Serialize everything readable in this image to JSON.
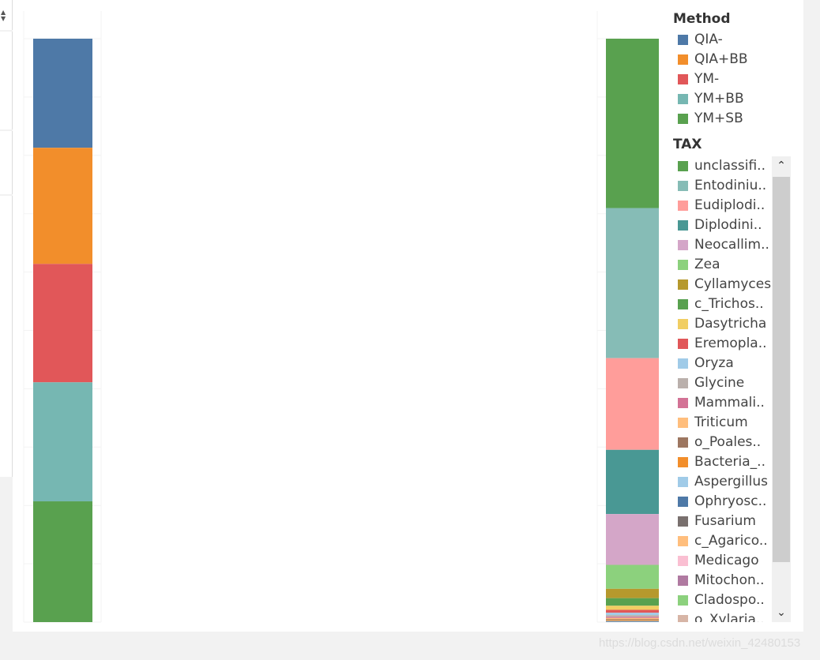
{
  "watermark": "https://blog.csdn.net/weixin_42480153",
  "left_panel": {
    "sort_icon": "sort-icon"
  },
  "legend": {
    "method_title": "Method",
    "tax_title": "TAX",
    "method_items": [
      {
        "label": "QIA-",
        "color": "#4e79a7"
      },
      {
        "label": "QIA+BB",
        "color": "#f28e2b"
      },
      {
        "label": "YM-",
        "color": "#e15759"
      },
      {
        "label": "YM+BB",
        "color": "#76b7b2"
      },
      {
        "label": "YM+SB",
        "color": "#59a14f"
      }
    ],
    "tax_items": [
      {
        "label": "unclassifi..",
        "color": "#59a14f"
      },
      {
        "label": "Entodiniu..",
        "color": "#86bcb6"
      },
      {
        "label": "Eudiplodi..",
        "color": "#ff9d9a"
      },
      {
        "label": "Diplodini..",
        "color": "#499894"
      },
      {
        "label": "Neocallim..",
        "color": "#d4a6c8"
      },
      {
        "label": "Zea",
        "color": "#8cd17d"
      },
      {
        "label": "Cyllamyces",
        "color": "#b6992d"
      },
      {
        "label": "c_Trichos..",
        "color": "#59a14f"
      },
      {
        "label": "Dasytricha",
        "color": "#f1ce63"
      },
      {
        "label": "Eremopla..",
        "color": "#e15759"
      },
      {
        "label": "Oryza",
        "color": "#a0cbe8"
      },
      {
        "label": "Glycine",
        "color": "#bab0ac"
      },
      {
        "label": "Mammali..",
        "color": "#d37295"
      },
      {
        "label": "Triticum",
        "color": "#ffbe7d"
      },
      {
        "label": "o_Poales..",
        "color": "#9d7660"
      },
      {
        "label": "Bacteria_..",
        "color": "#f28e2b"
      },
      {
        "label": "Aspergillus",
        "color": "#a0cbe8"
      },
      {
        "label": "Ophryosc..",
        "color": "#4e79a7"
      },
      {
        "label": "Fusarium",
        "color": "#79706e"
      },
      {
        "label": "c_Agarico..",
        "color": "#ffbe7d"
      },
      {
        "label": "Medicago",
        "color": "#fabfd2"
      },
      {
        "label": "Mitochon..",
        "color": "#b07aa1"
      },
      {
        "label": "Cladospo..",
        "color": "#8cd17d"
      },
      {
        "label": "o_Xylaria..",
        "color": "#d7b5a6"
      }
    ],
    "scroll_up_icon": "chevron-up-icon",
    "scroll_down_icon": "chevron-down-icon"
  },
  "chart_data": [
    {
      "type": "bar",
      "stacked": true,
      "normalized": true,
      "categories": [
        ""
      ],
      "series": [
        {
          "name": "QIA-",
          "values": [
            18.7
          ],
          "color": "#4e79a7"
        },
        {
          "name": "QIA+BB",
          "values": [
            19.9
          ],
          "color": "#f28e2b"
        },
        {
          "name": "YM-",
          "values": [
            20.3
          ],
          "color": "#e15759"
        },
        {
          "name": "YM+BB",
          "values": [
            20.4
          ],
          "color": "#76b7b2"
        },
        {
          "name": "YM+SB",
          "values": [
            20.7
          ],
          "color": "#59a14f"
        }
      ]
    },
    {
      "type": "bar",
      "stacked": true,
      "normalized": true,
      "categories": [
        ""
      ],
      "series": [
        {
          "name": "unclassifi..",
          "values": [
            29.0
          ],
          "color": "#59a14f"
        },
        {
          "name": "Entodiniu..",
          "values": [
            25.7
          ],
          "color": "#86bcb6"
        },
        {
          "name": "Eudiplodi..",
          "values": [
            15.7
          ],
          "color": "#ff9d9a"
        },
        {
          "name": "Diplodini..",
          "values": [
            11.0
          ],
          "color": "#499894"
        },
        {
          "name": "Neocallim..",
          "values": [
            8.7
          ],
          "color": "#d4a6c8"
        },
        {
          "name": "Zea",
          "values": [
            4.1
          ],
          "color": "#8cd17d"
        },
        {
          "name": "Cyllamyces",
          "values": [
            1.6
          ],
          "color": "#b6992d"
        },
        {
          "name": "c_Trichos..",
          "values": [
            1.3
          ],
          "color": "#59a14f"
        },
        {
          "name": "Dasytricha",
          "values": [
            0.7
          ],
          "color": "#f1ce63"
        },
        {
          "name": "Eremopla..",
          "values": [
            0.5
          ],
          "color": "#e15759"
        },
        {
          "name": "Oryza",
          "values": [
            0.4
          ],
          "color": "#a0cbe8"
        },
        {
          "name": "Glycine",
          "values": [
            0.3
          ],
          "color": "#bab0ac"
        },
        {
          "name": "Mammali..",
          "values": [
            0.2
          ],
          "color": "#d37295"
        },
        {
          "name": "Triticum",
          "values": [
            0.2
          ],
          "color": "#ffbe7d"
        },
        {
          "name": "o_Poales..",
          "values": [
            0.15
          ],
          "color": "#9d7660"
        },
        {
          "name": "Bacteria_..",
          "values": [
            0.15
          ],
          "color": "#f28e2b"
        },
        {
          "name": "Aspergillus",
          "values": [
            0.1
          ],
          "color": "#a0cbe8"
        },
        {
          "name": "Ophryosc..",
          "values": [
            0.1
          ],
          "color": "#4e79a7"
        }
      ]
    }
  ]
}
